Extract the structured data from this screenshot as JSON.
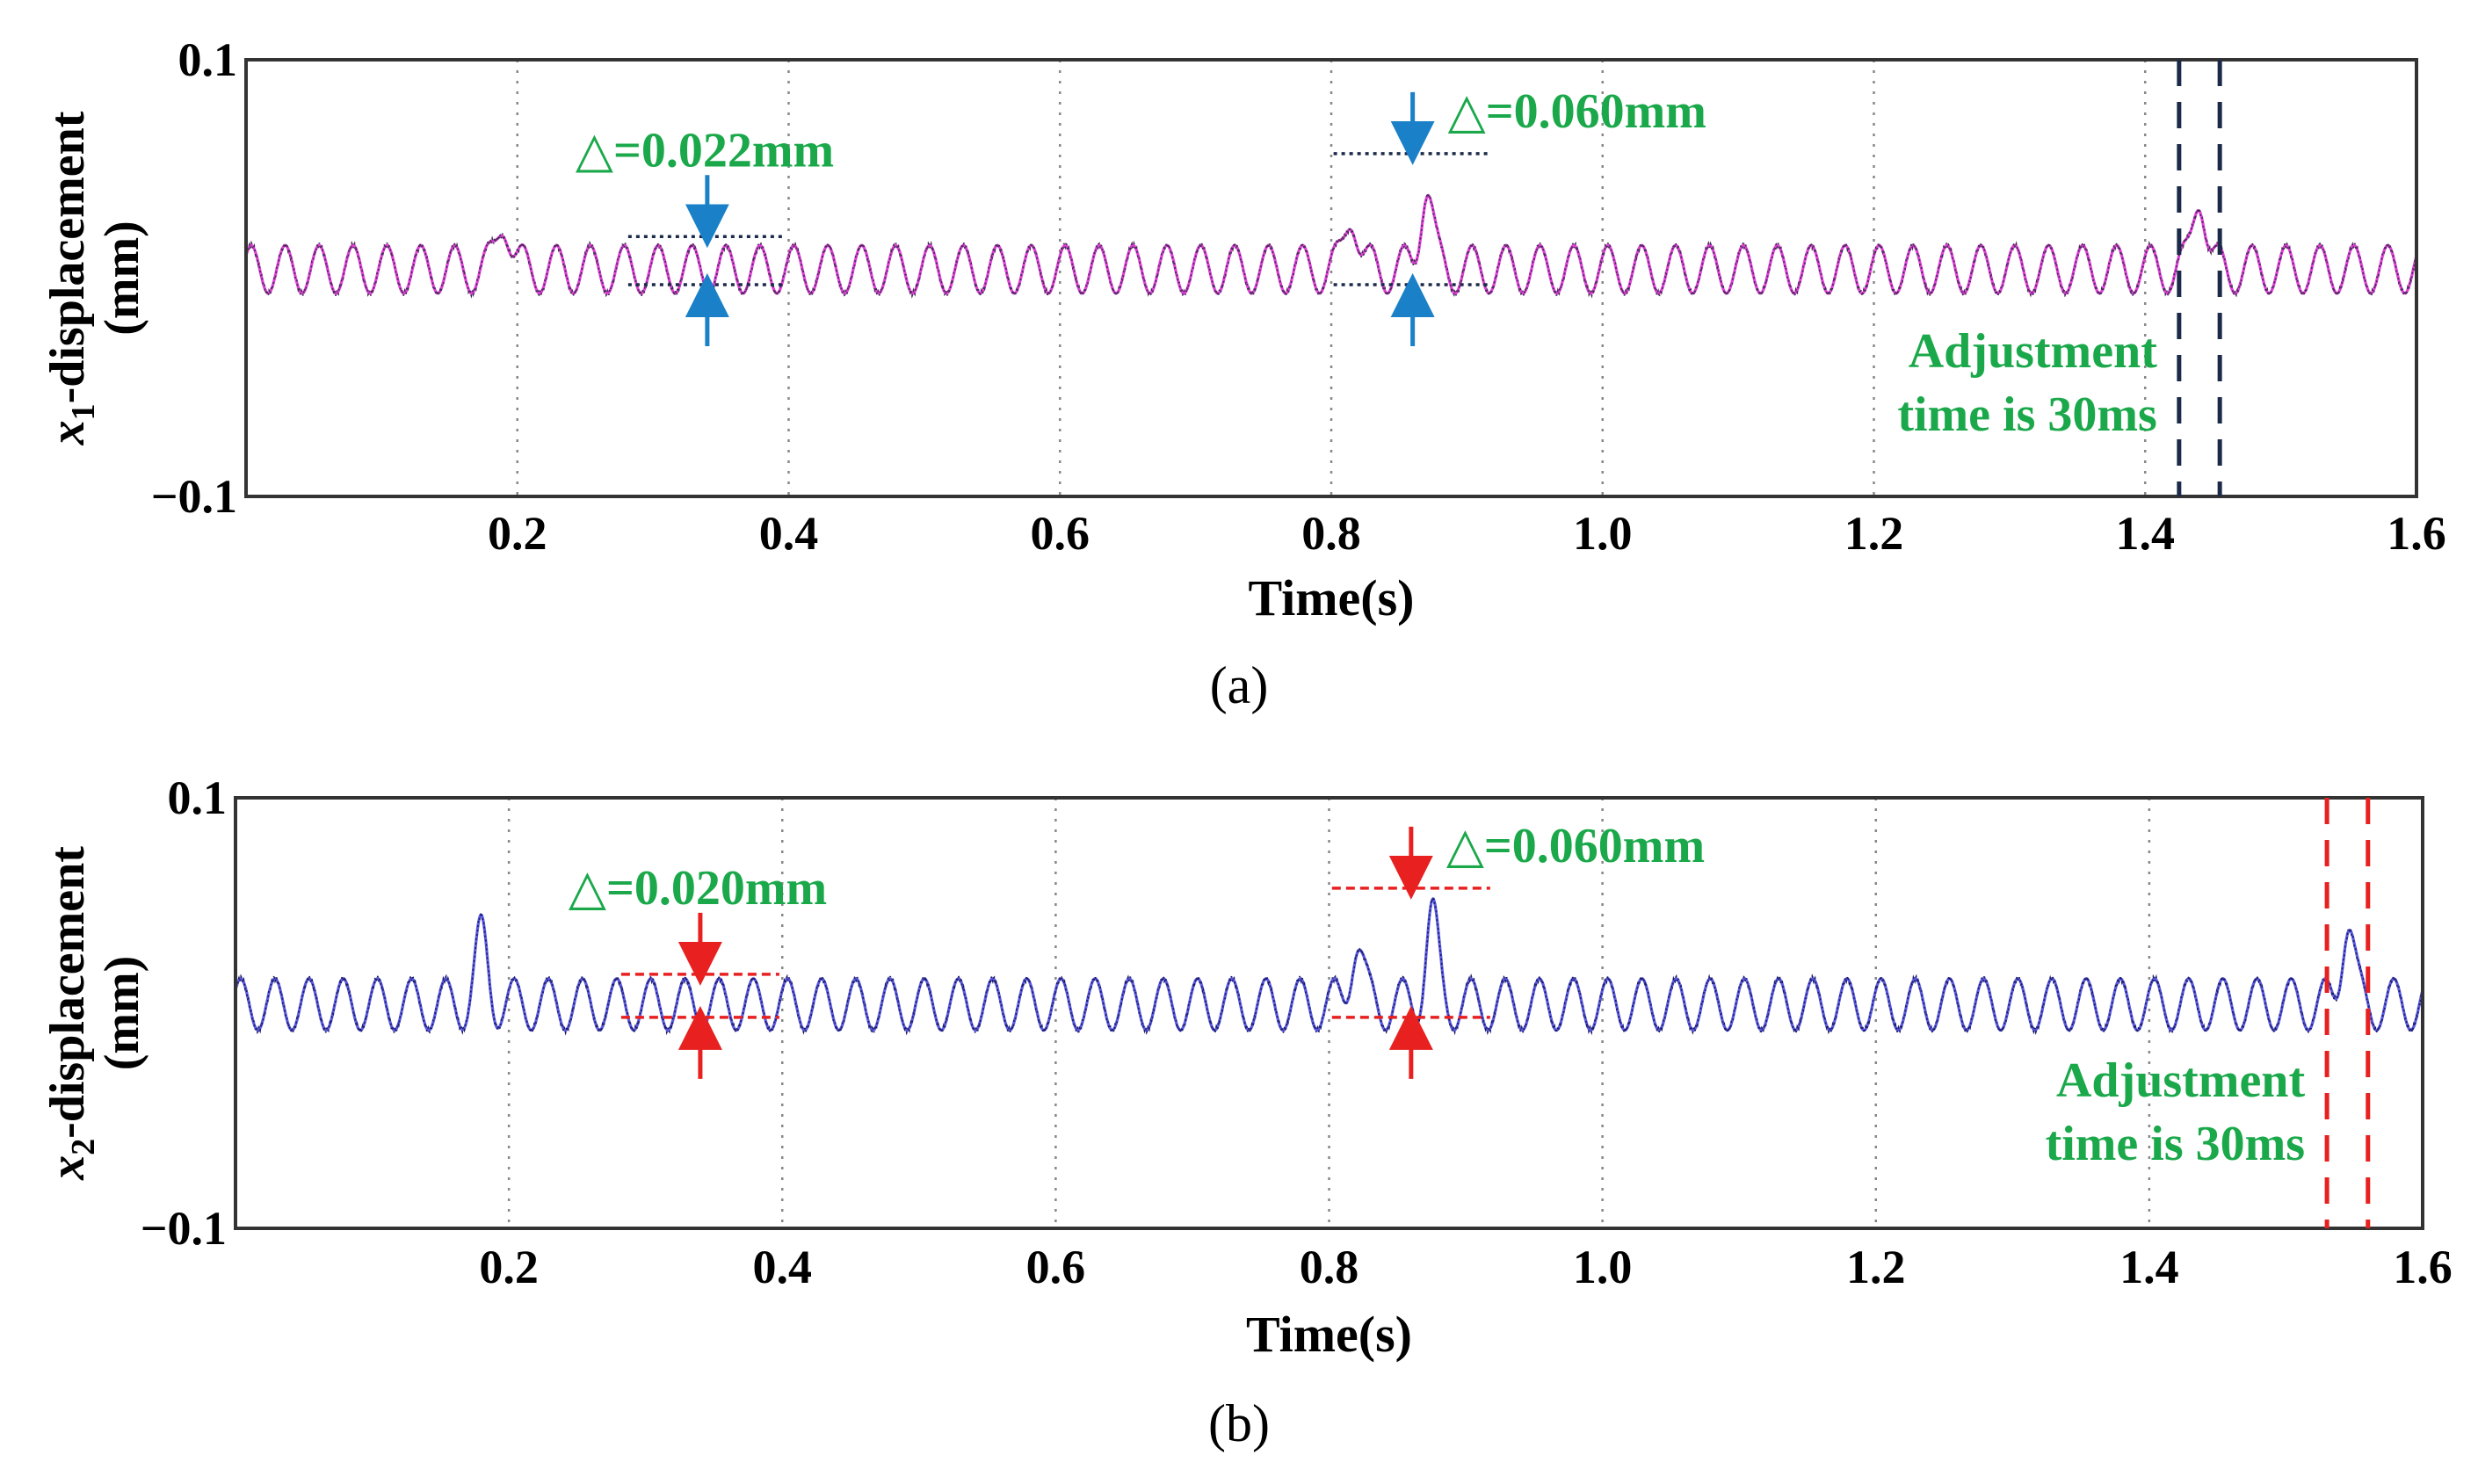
{
  "chart_data": [
    {
      "panel": "(a)",
      "type": "line",
      "ylabel_var": "x",
      "ylabel_sub": "1",
      "ylabel_rest": "-displacement",
      "ylabel_unit": "(mm)",
      "xlabel": "Time(s)",
      "xlim": [
        0,
        1.6
      ],
      "ylim": [
        -0.1,
        0.1
      ],
      "xticks": [
        "0.2",
        "0.4",
        "0.6",
        "0.8",
        "1.0",
        "1.2",
        "1.4",
        "1.6"
      ],
      "yticks": [
        "0.1",
        "−0.1"
      ],
      "grid_x": [
        0.2,
        0.4,
        0.6,
        0.8,
        1.0,
        1.2,
        1.4
      ],
      "signal": {
        "freq_hz": 40,
        "center_mm": 0.004,
        "amplitude_mm": 0.011,
        "peaks": [
          {
            "t": 0.19,
            "y_mm": 0.04
          },
          {
            "t": 0.815,
            "y_mm": 0.043
          },
          {
            "t": 0.87,
            "y_mm": 0.054
          },
          {
            "t": 1.44,
            "y_mm": 0.052
          }
        ]
      },
      "colors": {
        "line1": "#e040d8",
        "line2": "#4a2a5a",
        "marker": "#1a80c8",
        "adjust_lines": "#1c2a4a"
      },
      "annotations": [
        {
          "text": "△=0.022mm",
          "t": 0.34,
          "top_mm": 0.019,
          "bottom_mm": -0.003
        },
        {
          "text": "△=0.060mm",
          "t": 0.86,
          "top_mm": 0.057,
          "bottom_mm": -0.003
        }
      ],
      "adjustment": {
        "line1": "Adjustment",
        "line2": "time is 30ms",
        "t_start": 1.425,
        "t_end": 1.455
      }
    },
    {
      "panel": "(b)",
      "type": "line",
      "ylabel_var": "x",
      "ylabel_sub": "2",
      "ylabel_rest": "-displacement",
      "ylabel_unit": "(mm)",
      "xlabel": "Time(s)",
      "xlim": [
        0,
        1.6
      ],
      "ylim": [
        -0.1,
        0.1
      ],
      "xticks": [
        "0.2",
        "0.4",
        "0.6",
        "0.8",
        "1.0",
        "1.2",
        "1.4",
        "1.6"
      ],
      "yticks": [
        "0.1",
        "−0.1"
      ],
      "grid_x": [
        0.2,
        0.4,
        0.6,
        0.8,
        1.0,
        1.2,
        1.4
      ],
      "signal": {
        "freq_hz": 40,
        "center_mm": 0.004,
        "amplitude_mm": 0.012,
        "peaks": [
          {
            "t": 0.18,
            "y_mm": 0.046
          },
          {
            "t": 0.82,
            "y_mm": 0.046
          },
          {
            "t": 0.875,
            "y_mm": 0.057
          },
          {
            "t": 1.545,
            "y_mm": 0.056
          }
        ]
      },
      "colors": {
        "line1": "#5a5ae0",
        "line2": "#1c1c6a",
        "marker": "#e82020",
        "adjust_lines": "#e82020"
      },
      "annotations": [
        {
          "text": "△=0.020mm",
          "t": 0.34,
          "top_mm": 0.018,
          "bottom_mm": -0.002
        },
        {
          "text": "△=0.060mm",
          "t": 0.86,
          "top_mm": 0.058,
          "bottom_mm": -0.002
        }
      ],
      "adjustment": {
        "line1": "Adjustment",
        "line2": "time is 30ms",
        "t_start": 1.53,
        "t_end": 1.56
      }
    }
  ]
}
